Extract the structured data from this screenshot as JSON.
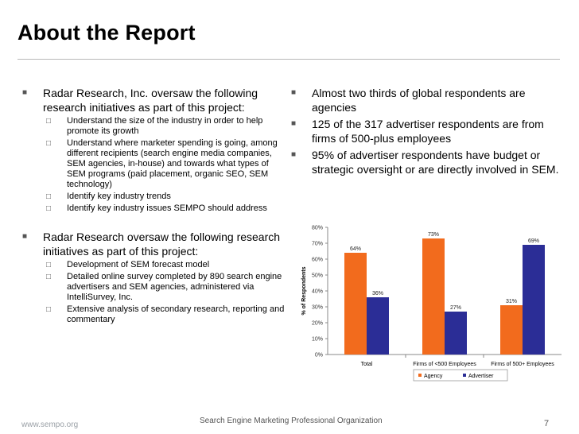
{
  "slide": {
    "title": "About the Report",
    "footer_left": "www.sempo.org",
    "footer_center": "Search Engine Marketing Professional Organization",
    "page_number": "7"
  },
  "left": {
    "groups": [
      {
        "text": "Radar Research, Inc. oversaw the following research initiatives as part of this project:",
        "subs": [
          "Understand the size of the industry in order to help promote its growth",
          "Understand where marketer spending is going, among different recipients (search engine media companies, SEM agencies, in-house) and towards what types of SEM programs (paid placement, organic SEO, SEM technology)",
          "Identify key industry trends",
          "Identify key industry issues SEMPO should address"
        ]
      },
      {
        "text": "Radar Research oversaw the following research initiatives as part of this project:",
        "subs": [
          "Development of SEM forecast model",
          "Detailed online survey completed by 890 search engine advertisers and SEM agencies, administered via IntelliSurvey, Inc.",
          "Extensive analysis of secondary research, reporting and commentary"
        ]
      }
    ]
  },
  "right": {
    "bullets": [
      "Almost two thirds of global respondents are agencies",
      "125 of the 317 advertiser respondents are from firms of 500-plus employees",
      "95% of advertiser respondents have budget or strategic oversight or are directly involved in SEM."
    ]
  },
  "markers": {
    "bullet": "■",
    "sub": "□"
  },
  "colors": {
    "agency": "#f26b1d",
    "advertiser": "#2b2d96",
    "axis": "#888888",
    "grid": "#dddddd"
  },
  "chart_data": {
    "type": "bar",
    "categories": [
      "Total",
      "Firms of <500 Employees",
      "Firms of 500+ Employees"
    ],
    "series": [
      {
        "name": "Agency",
        "values": [
          64,
          73,
          31
        ],
        "labels": [
          "64%",
          "73%",
          "31%"
        ]
      },
      {
        "name": "Advertiser",
        "values": [
          36,
          27,
          69
        ],
        "labels": [
          "36%",
          "27%",
          "69%"
        ]
      }
    ],
    "ylabel": "% of Respondents",
    "ylim": [
      0,
      80
    ],
    "yticks": [
      0,
      10,
      20,
      30,
      40,
      50,
      60,
      70,
      80
    ],
    "ytick_labels": [
      "0%",
      "10%",
      "20%",
      "30%",
      "40%",
      "50%",
      "60%",
      "70%",
      "80%"
    ],
    "legend_position": "bottom"
  }
}
